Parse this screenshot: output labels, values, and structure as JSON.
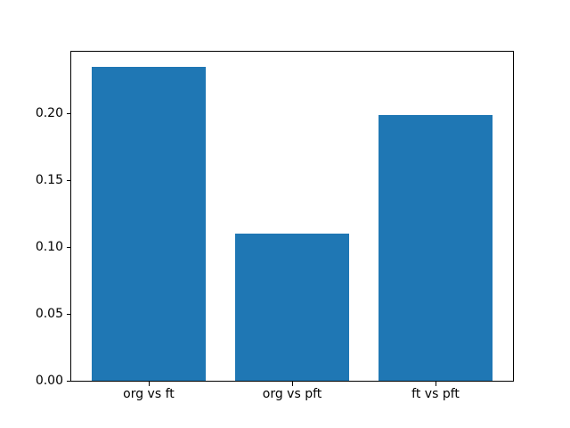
{
  "figure": {
    "background": "#ffffff"
  },
  "chart_data": {
    "type": "bar",
    "title": "",
    "xlabel": "",
    "ylabel": "",
    "categories": [
      "org vs ft",
      "org vs pft",
      "ft vs pft"
    ],
    "values": [
      0.235,
      0.11,
      0.199
    ],
    "bar_color": "#1f77b4",
    "x_positions": [
      0,
      1,
      2
    ],
    "bar_width": 0.8,
    "xlim": [
      -0.54,
      2.54
    ],
    "ylim": [
      0,
      0.246
    ],
    "yticks": [
      0.0,
      0.05,
      0.1,
      0.15,
      0.2
    ],
    "ytick_labels": [
      "0.00",
      "0.05",
      "0.10",
      "0.15",
      "0.20"
    ],
    "grid": false,
    "legend": null
  }
}
